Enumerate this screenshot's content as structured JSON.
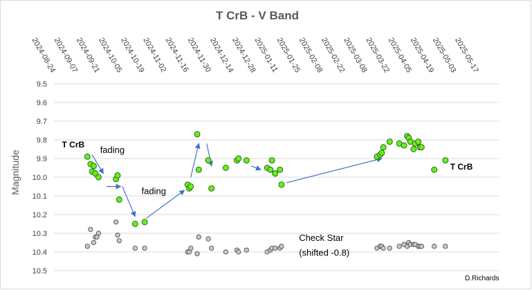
{
  "chart_data": {
    "type": "scatter",
    "title": "T CrB - V Band",
    "ylabel": "Magnitude",
    "xlabel": "",
    "ylim": [
      9.5,
      10.5
    ],
    "y_inverted": true,
    "yticks": [
      "9.5",
      "9.6",
      "9.7",
      "9.8",
      "9.9",
      "10.0",
      "10.1",
      "10.2",
      "10.3",
      "10.4",
      "10.5"
    ],
    "xlim": [
      "2024-08-24",
      "2025-05-31"
    ],
    "xticks": [
      "2024-08-24",
      "2024-09-07",
      "2024-09-21",
      "2024-10-05",
      "2024-10-19",
      "2024-11-02",
      "2024-11-16",
      "2024-11-30",
      "2024-12-14",
      "2024-12-28",
      "2025-01-11",
      "2025-01-25",
      "2025-02-08",
      "2025-02-22",
      "2025-03-08",
      "2025-03-22",
      "2025-04-05",
      "2025-04-19",
      "2025-05-03",
      "2025-05-17"
    ],
    "grid": "horizontal",
    "series": [
      {
        "name": "T CrB",
        "color": "#66ee22",
        "points": [
          [
            "2024-09-14",
            9.89
          ],
          [
            "2024-09-16",
            9.93
          ],
          [
            "2024-09-17",
            9.97
          ],
          [
            "2024-09-18",
            9.94
          ],
          [
            "2024-09-19",
            9.98
          ],
          [
            "2024-09-21",
            10.0
          ],
          [
            "2024-10-02",
            10.01
          ],
          [
            "2024-10-03",
            9.99
          ],
          [
            "2024-10-04",
            10.12
          ],
          [
            "2024-10-14",
            10.25
          ],
          [
            "2024-10-20",
            10.24
          ],
          [
            "2024-11-16",
            10.04
          ],
          [
            "2024-11-17",
            10.06
          ],
          [
            "2024-11-18",
            10.05
          ],
          [
            "2024-11-22",
            9.77
          ],
          [
            "2024-11-23",
            9.96
          ],
          [
            "2024-11-29",
            9.91
          ],
          [
            "2024-12-01",
            10.06
          ],
          [
            "2024-12-10",
            9.95
          ],
          [
            "2024-12-17",
            9.91
          ],
          [
            "2024-12-18",
            9.9
          ],
          [
            "2024-12-23",
            9.91
          ],
          [
            "2025-01-05",
            9.95
          ],
          [
            "2025-01-07",
            9.96
          ],
          [
            "2025-01-08",
            9.91
          ],
          [
            "2025-01-10",
            9.98
          ],
          [
            "2025-01-13",
            9.96
          ],
          [
            "2025-01-14",
            10.04
          ],
          [
            "2025-03-15",
            9.89
          ],
          [
            "2025-03-17",
            9.88
          ],
          [
            "2025-03-18",
            9.87
          ],
          [
            "2025-03-19",
            9.84
          ],
          [
            "2025-03-23",
            9.81
          ],
          [
            "2025-03-29",
            9.82
          ],
          [
            "2025-04-01",
            9.83
          ],
          [
            "2025-04-03",
            9.78
          ],
          [
            "2025-04-04",
            9.79
          ],
          [
            "2025-04-05",
            9.81
          ],
          [
            "2025-04-07",
            9.85
          ],
          [
            "2025-04-08",
            9.82
          ],
          [
            "2025-04-10",
            9.81
          ],
          [
            "2025-04-11",
            9.84
          ],
          [
            "2025-04-12",
            9.84
          ],
          [
            "2025-04-20",
            9.96
          ],
          [
            "2025-04-27",
            9.91
          ]
        ]
      },
      {
        "name": "Check Star (shifted -0.8)",
        "color": "#c0c0c0",
        "points": [
          [
            "2024-09-14",
            10.37
          ],
          [
            "2024-09-16",
            10.28
          ],
          [
            "2024-09-18",
            10.35
          ],
          [
            "2024-09-19",
            10.32
          ],
          [
            "2024-09-20",
            10.32
          ],
          [
            "2024-09-21",
            10.3
          ],
          [
            "2024-10-02",
            10.24
          ],
          [
            "2024-10-03",
            10.31
          ],
          [
            "2024-10-04",
            10.34
          ],
          [
            "2024-10-14",
            10.38
          ],
          [
            "2024-10-20",
            10.38
          ],
          [
            "2024-11-16",
            10.4
          ],
          [
            "2024-11-17",
            10.4
          ],
          [
            "2024-11-18",
            10.38
          ],
          [
            "2024-11-22",
            10.41
          ],
          [
            "2024-11-23",
            10.32
          ],
          [
            "2024-11-29",
            10.33
          ],
          [
            "2024-12-01",
            10.38
          ],
          [
            "2024-12-10",
            10.4
          ],
          [
            "2024-12-17",
            10.39
          ],
          [
            "2024-12-18",
            10.4
          ],
          [
            "2024-12-23",
            10.39
          ],
          [
            "2025-01-05",
            10.4
          ],
          [
            "2025-01-07",
            10.39
          ],
          [
            "2025-01-08",
            10.38
          ],
          [
            "2025-01-10",
            10.38
          ],
          [
            "2025-01-13",
            10.38
          ],
          [
            "2025-01-14",
            10.37
          ],
          [
            "2025-03-15",
            10.38
          ],
          [
            "2025-03-17",
            10.37
          ],
          [
            "2025-03-18",
            10.37
          ],
          [
            "2025-03-19",
            10.38
          ],
          [
            "2025-03-23",
            10.38
          ],
          [
            "2025-03-29",
            10.37
          ],
          [
            "2025-04-01",
            10.36
          ],
          [
            "2025-04-03",
            10.37
          ],
          [
            "2025-04-04",
            10.35
          ],
          [
            "2025-04-05",
            10.36
          ],
          [
            "2025-04-07",
            10.36
          ],
          [
            "2025-04-08",
            10.36
          ],
          [
            "2025-04-10",
            10.37
          ],
          [
            "2025-04-11",
            10.37
          ],
          [
            "2025-04-12",
            10.37
          ],
          [
            "2025-04-20",
            10.37
          ],
          [
            "2025-04-27",
            10.37
          ]
        ]
      }
    ],
    "annotations": [
      {
        "text": "T CrB",
        "x": "2024-08-29",
        "y": 9.84,
        "style": "bold"
      },
      {
        "text": "fading",
        "x": "2024-09-22",
        "y": 9.87,
        "style": "normal"
      },
      {
        "text": "fading",
        "x": "2024-10-18",
        "y": 10.09,
        "style": "normal"
      },
      {
        "text": "T CrB",
        "x": "2025-04-30",
        "y": 9.96,
        "style": "bold"
      },
      {
        "text": "Check Star",
        "x": "2025-01-25",
        "y": 10.34,
        "style": "normal"
      },
      {
        "text": "(shifted -0.8)",
        "x": "2025-01-25",
        "y": 10.42,
        "style": "normal"
      }
    ],
    "arrows": [
      {
        "from": [
          "2024-09-17",
          9.88
        ],
        "to": [
          "2024-09-24",
          9.98
        ]
      },
      {
        "from": [
          "2024-09-26",
          10.05
        ],
        "to": [
          "2024-10-05",
          10.05
        ]
      },
      {
        "from": [
          "2024-10-06",
          10.05
        ],
        "to": [
          "2024-10-14",
          10.21
        ]
      },
      {
        "from": [
          "2024-10-21",
          10.22
        ],
        "to": [
          "2024-11-14",
          10.07
        ]
      },
      {
        "from": [
          "2024-11-18",
          10.0
        ],
        "to": [
          "2024-11-23",
          9.82
        ]
      },
      {
        "from": [
          "2024-11-28",
          9.82
        ],
        "to": [
          "2024-12-01",
          9.94
        ]
      },
      {
        "from": [
          "2024-12-26",
          9.94
        ],
        "to": [
          "2025-01-01",
          9.96
        ]
      },
      {
        "from": [
          "2025-01-17",
          10.03
        ],
        "to": [
          "2025-03-18",
          9.9
        ]
      }
    ],
    "credit": "D.Richards"
  }
}
